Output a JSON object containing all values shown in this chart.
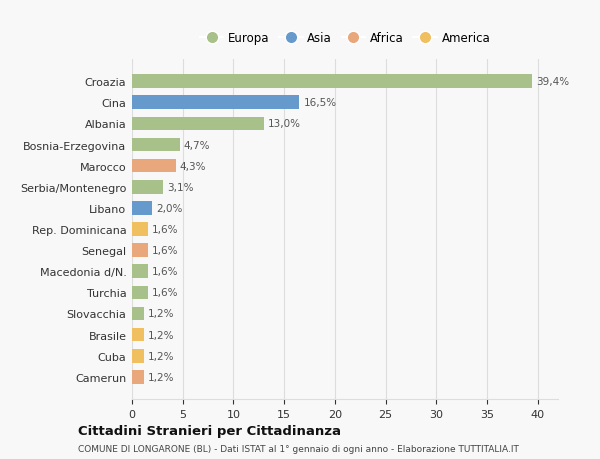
{
  "categories": [
    "Croazia",
    "Cina",
    "Albania",
    "Bosnia-Erzegovina",
    "Marocco",
    "Serbia/Montenegro",
    "Libano",
    "Rep. Dominicana",
    "Senegal",
    "Macedonia d/N.",
    "Turchia",
    "Slovacchia",
    "Brasile",
    "Cuba",
    "Camerun"
  ],
  "values": [
    39.4,
    16.5,
    13.0,
    4.7,
    4.3,
    3.1,
    2.0,
    1.6,
    1.6,
    1.6,
    1.6,
    1.2,
    1.2,
    1.2,
    1.2
  ],
  "labels": [
    "39,4%",
    "16,5%",
    "13,0%",
    "4,7%",
    "4,3%",
    "3,1%",
    "2,0%",
    "1,6%",
    "1,6%",
    "1,6%",
    "1,6%",
    "1,2%",
    "1,2%",
    "1,2%",
    "1,2%"
  ],
  "colors": [
    "#a8c08a",
    "#6699cc",
    "#a8c08a",
    "#a8c08a",
    "#e8a87c",
    "#a8c08a",
    "#6699cc",
    "#f0c060",
    "#e8a87c",
    "#a8c08a",
    "#a8c08a",
    "#a8c08a",
    "#f0c060",
    "#f0c060",
    "#e8a87c"
  ],
  "legend": [
    {
      "label": "Europa",
      "color": "#a8c08a"
    },
    {
      "label": "Asia",
      "color": "#6699cc"
    },
    {
      "label": "Africa",
      "color": "#e8a87c"
    },
    {
      "label": "America",
      "color": "#f0c060"
    }
  ],
  "title": "Cittadini Stranieri per Cittadinanza",
  "subtitle": "COMUNE DI LONGARONE (BL) - Dati ISTAT al 1° gennaio di ogni anno - Elaborazione TUTTITALIA.IT",
  "xlim": [
    0,
    42
  ],
  "xticks": [
    0,
    5,
    10,
    15,
    20,
    25,
    30,
    35,
    40
  ],
  "background_color": "#f8f8f8",
  "grid_color": "#dddddd"
}
